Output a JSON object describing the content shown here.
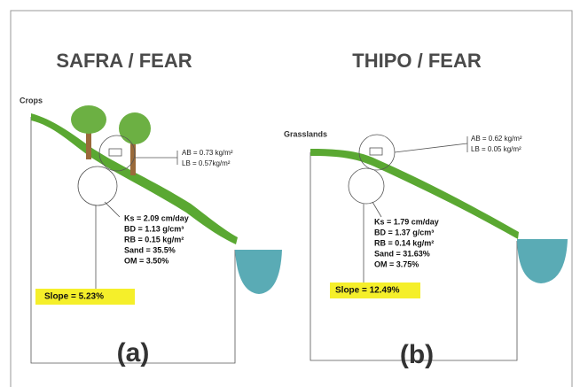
{
  "panels": [
    {
      "title": "SAFRA / FEAR",
      "land_use": "Crops",
      "surface": [
        "AB = 0.73 kg/m²",
        "LB = 0.57kg/m²"
      ],
      "soil": [
        "Ks = 2.09 cm/day",
        "BD = 1.13 g/cm³",
        "RB = 0.15 kg/m²",
        "Sand = 35.5%",
        "OM = 3.50%"
      ],
      "slope": "Slope = 5.23%",
      "caption": "(a)"
    },
    {
      "title": "THIPO / FEAR",
      "land_use": "Grasslands",
      "surface": [
        "AB = 0.62 kg/m²",
        "LB = 0.05 kg/m²"
      ],
      "soil": [
        "Ks = 1.79 cm/day",
        "BD = 1.37 g/cm³",
        "RB = 0.14 kg/m²",
        "Sand = 31.63%",
        "OM = 3.75%"
      ],
      "slope": "Slope = 12.49%",
      "caption": "(b)"
    }
  ]
}
